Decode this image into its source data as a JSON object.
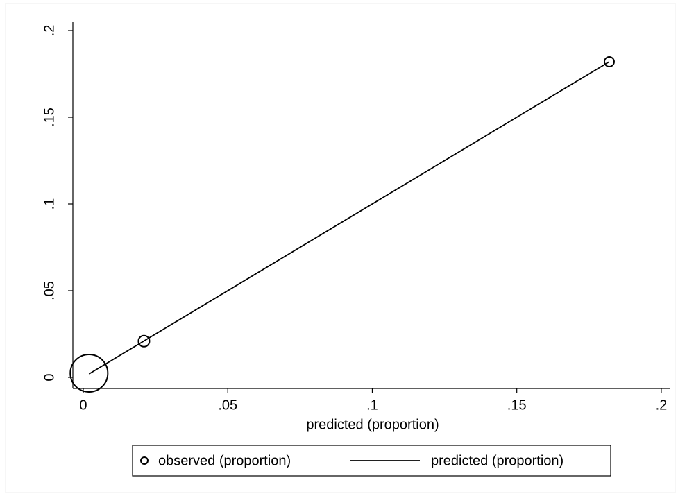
{
  "chart_data": {
    "type": "scatter",
    "x_label": "predicted (proportion)",
    "xlim": [
      -0.0036,
      0.2029
    ],
    "ylim": [
      -0.0064,
      0.2048
    ],
    "xticks": [
      0,
      {
        "value": 0.05,
        "label": ".05"
      },
      {
        "value": 0.1,
        "label": ".1"
      },
      {
        "value": 0.15,
        "label": ".15"
      },
      {
        "value": 0.2,
        "label": ".2"
      }
    ],
    "yticks": [
      0,
      {
        "value": 0.05,
        "label": ".05"
      },
      {
        "value": 0.1,
        "label": ".1"
      },
      {
        "value": 0.15,
        "label": ".15"
      },
      {
        "value": 0.2,
        "label": ".2"
      }
    ],
    "grid": false,
    "legend": "bottom",
    "series": [
      {
        "name": "observed (proportion)",
        "type": "scatter",
        "color": "#000000",
        "x": [
          0.002,
          0.021,
          0.182
        ],
        "values": [
          0.0024,
          0.0209,
          0.182
        ],
        "sizes": [
          730,
          64,
          49
        ]
      },
      {
        "name": "predicted (proportion)",
        "type": "line",
        "color": "#000000",
        "x": [
          0.002,
          0.021,
          0.182
        ],
        "values": [
          0.002,
          0.021,
          0.182
        ]
      }
    ]
  }
}
